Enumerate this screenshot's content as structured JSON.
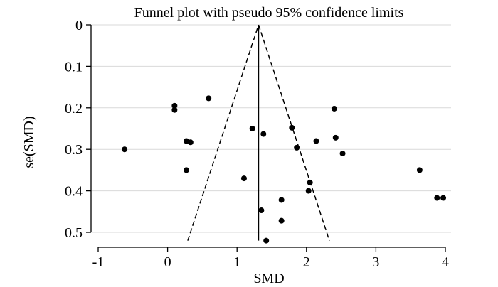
{
  "chart_data": {
    "type": "scatter",
    "title": "Funnel plot with pseudo 95% confidence limits",
    "xlabel": "SMD",
    "ylabel": "se(SMD)",
    "xlim": [
      -1,
      4
    ],
    "ylim": [
      0,
      0.52
    ],
    "y_reversed": true,
    "grid": true,
    "x_ticks": [
      -1,
      0,
      1,
      2,
      3,
      4
    ],
    "x_tick_labels": [
      "-1",
      "0",
      "1",
      "2",
      "3",
      "4"
    ],
    "y_ticks": [
      0,
      0.1,
      0.2,
      0.3,
      0.4,
      0.5
    ],
    "y_tick_labels": [
      "0",
      "0.1",
      "0.2",
      "0.3",
      "0.4",
      "0.5"
    ],
    "pooled_estimate": 1.31,
    "pseudo_ci": {
      "apex": [
        1.31,
        0
      ],
      "lower_left": [
        0.29,
        0.52
      ],
      "lower_right": [
        2.33,
        0.52
      ]
    },
    "points": [
      {
        "x": -0.62,
        "y": 0.3
      },
      {
        "x": 0.1,
        "y": 0.195
      },
      {
        "x": 0.1,
        "y": 0.205
      },
      {
        "x": 0.27,
        "y": 0.28
      },
      {
        "x": 0.33,
        "y": 0.283
      },
      {
        "x": 0.27,
        "y": 0.35
      },
      {
        "x": 0.59,
        "y": 0.177
      },
      {
        "x": 1.1,
        "y": 0.37
      },
      {
        "x": 1.22,
        "y": 0.25
      },
      {
        "x": 1.38,
        "y": 0.263
      },
      {
        "x": 1.35,
        "y": 0.447
      },
      {
        "x": 1.42,
        "y": 0.52
      },
      {
        "x": 1.64,
        "y": 0.422
      },
      {
        "x": 1.64,
        "y": 0.472
      },
      {
        "x": 1.79,
        "y": 0.248
      },
      {
        "x": 1.86,
        "y": 0.296
      },
      {
        "x": 2.05,
        "y": 0.38
      },
      {
        "x": 2.03,
        "y": 0.4
      },
      {
        "x": 2.14,
        "y": 0.28
      },
      {
        "x": 2.4,
        "y": 0.202
      },
      {
        "x": 2.42,
        "y": 0.272
      },
      {
        "x": 2.52,
        "y": 0.31
      },
      {
        "x": 3.63,
        "y": 0.35
      },
      {
        "x": 3.88,
        "y": 0.417
      },
      {
        "x": 3.97,
        "y": 0.417
      }
    ]
  }
}
